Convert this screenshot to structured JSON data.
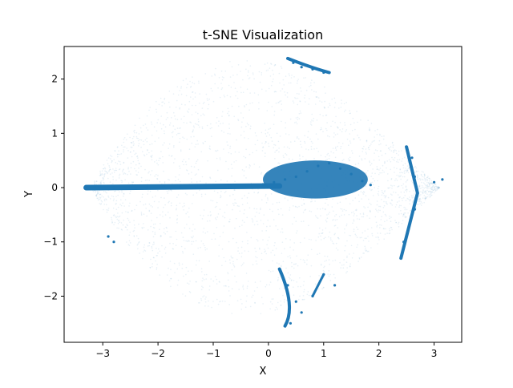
{
  "chart_data": {
    "type": "scatter",
    "title": "t-SNE Visualization",
    "xlabel": "X",
    "ylabel": "Y",
    "xlim": [
      -3.7,
      3.5
    ],
    "ylim": [
      -2.85,
      2.6
    ],
    "xticks": [
      -3,
      -2,
      -1,
      0,
      1,
      2,
      3
    ],
    "xtick_labels": [
      "−3",
      "−2",
      "−1",
      "0",
      "1",
      "2",
      "3"
    ],
    "yticks": [
      -2,
      -1,
      0,
      1,
      2
    ],
    "ytick_labels": [
      "−2",
      "−1",
      "0",
      "1",
      "2"
    ],
    "grid": false,
    "legend": "none",
    "marker_color": "#1f77b4",
    "series": [
      {
        "points": [
          [
            -3.28,
            0.0
          ],
          [
            -3.1,
            0.01
          ],
          [
            -2.8,
            0.0
          ],
          [
            -2.5,
            0.01
          ],
          [
            -2.2,
            0.0
          ],
          [
            -1.9,
            0.01
          ],
          [
            -1.6,
            0.0
          ],
          [
            -1.3,
            0.02
          ],
          [
            -1.0,
            0.02
          ],
          [
            -0.7,
            0.03
          ],
          [
            -0.4,
            0.04
          ],
          [
            -0.1,
            0.06
          ],
          [
            0.1,
            0.1
          ],
          [
            0.3,
            0.15
          ],
          [
            0.5,
            0.2
          ],
          [
            0.7,
            0.3
          ],
          [
            0.9,
            0.4
          ],
          [
            1.1,
            0.45
          ],
          [
            1.3,
            0.35
          ],
          [
            1.5,
            0.25
          ],
          [
            1.7,
            0.12
          ],
          [
            1.85,
            0.05
          ],
          [
            0.35,
            2.38
          ],
          [
            0.45,
            2.3
          ],
          [
            0.6,
            2.22
          ],
          [
            0.8,
            2.18
          ],
          [
            1.0,
            2.12
          ],
          [
            2.5,
            0.75
          ],
          [
            2.6,
            0.55
          ],
          [
            2.65,
            0.2
          ],
          [
            2.7,
            -0.1
          ],
          [
            2.65,
            -0.4
          ],
          [
            2.55,
            -0.7
          ],
          [
            2.45,
            -1.0
          ],
          [
            2.4,
            -1.3
          ],
          [
            3.0,
            0.1
          ],
          [
            3.15,
            0.15
          ],
          [
            0.2,
            -1.5
          ],
          [
            0.35,
            -1.8
          ],
          [
            0.5,
            -2.1
          ],
          [
            0.6,
            -2.3
          ],
          [
            0.4,
            -2.5
          ],
          [
            0.3,
            -2.55
          ],
          [
            1.0,
            -1.6
          ],
          [
            1.2,
            -1.8
          ],
          [
            0.8,
            -2.0
          ],
          [
            -2.9,
            -0.9
          ],
          [
            -2.8,
            -1.0
          ]
        ]
      }
    ]
  }
}
